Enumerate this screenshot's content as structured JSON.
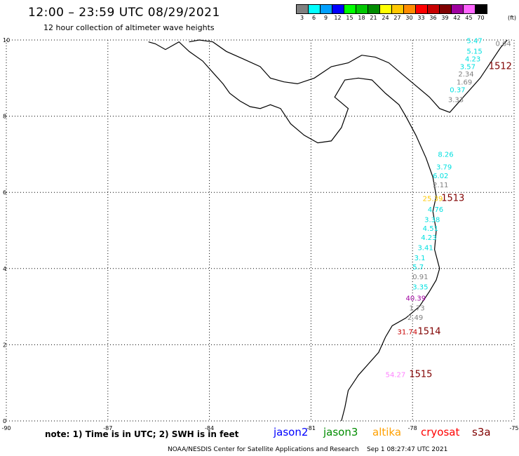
{
  "header": {
    "title": "12:00 – 23:59 UTC 08/29/2021",
    "subtitle": "12 hour collection of altimeter wave heights"
  },
  "legend": {
    "unit": "(ft)",
    "bins": [
      {
        "label": "3",
        "color": "#808080"
      },
      {
        "label": "6",
        "color": "#00ffff"
      },
      {
        "label": "9",
        "color": "#00a0ff"
      },
      {
        "label": "12",
        "color": "#0000ff"
      },
      {
        "label": "15",
        "color": "#00ff00"
      },
      {
        "label": "18",
        "color": "#00c800"
      },
      {
        "label": "21",
        "color": "#008c00"
      },
      {
        "label": "24",
        "color": "#ffff00"
      },
      {
        "label": "27",
        "color": "#ffc800"
      },
      {
        "label": "30",
        "color": "#ff8c00"
      },
      {
        "label": "33",
        "color": "#ff0000"
      },
      {
        "label": "36",
        "color": "#c80000"
      },
      {
        "label": "39",
        "color": "#800000"
      },
      {
        "label": "42",
        "color": "#a000a0"
      },
      {
        "label": "45",
        "color": "#ff64ff"
      },
      {
        "label": "70",
        "color": "#000000"
      }
    ]
  },
  "map": {
    "lon_ticks": [
      "-90",
      "-87",
      "-84",
      "-81",
      "-78",
      "-75"
    ],
    "lat_ticks": [
      "0",
      "2",
      "4",
      "6",
      "8",
      "10"
    ],
    "lon_range": [
      -90,
      -75
    ],
    "lat_range": [
      0,
      10
    ],
    "grid": "dotted",
    "coastline": [
      [
        -85.8,
        9.95
      ],
      [
        -85.6,
        9.9
      ],
      [
        -85.3,
        9.75
      ],
      [
        -84.9,
        9.95
      ],
      [
        -84.6,
        9.7
      ],
      [
        -84.2,
        9.45
      ],
      [
        -83.9,
        9.15
      ],
      [
        -83.6,
        8.85
      ],
      [
        -83.4,
        8.6
      ],
      [
        -83.1,
        8.4
      ],
      [
        -82.8,
        8.25
      ],
      [
        -82.5,
        8.2
      ],
      [
        -82.2,
        8.3
      ],
      [
        -81.9,
        8.2
      ],
      [
        -81.6,
        7.8
      ],
      [
        -81.2,
        7.5
      ],
      [
        -80.8,
        7.3
      ],
      [
        -80.4,
        7.35
      ],
      [
        -80.1,
        7.7
      ],
      [
        -79.9,
        8.2
      ],
      [
        -80.3,
        8.5
      ],
      [
        -80.0,
        8.95
      ],
      [
        -79.6,
        9.0
      ],
      [
        -79.2,
        8.95
      ],
      [
        -78.8,
        8.6
      ],
      [
        -78.4,
        8.3
      ],
      [
        -78.2,
        8.0
      ],
      [
        -77.9,
        7.5
      ],
      [
        -77.6,
        6.9
      ],
      [
        -77.4,
        6.4
      ],
      [
        -77.3,
        5.9
      ],
      [
        -77.4,
        5.5
      ],
      [
        -77.3,
        5.0
      ],
      [
        -77.35,
        4.5
      ],
      [
        -77.2,
        4.0
      ],
      [
        -77.3,
        3.7
      ],
      [
        -77.5,
        3.4
      ],
      [
        -77.8,
        3.0
      ],
      [
        -78.2,
        2.7
      ],
      [
        -78.6,
        2.5
      ],
      [
        -78.8,
        2.2
      ],
      [
        -79.0,
        1.8
      ],
      [
        -79.3,
        1.5
      ],
      [
        -79.6,
        1.2
      ],
      [
        -79.9,
        0.8
      ],
      [
        -80.0,
        0.35
      ],
      [
        -80.1,
        0.0
      ]
    ],
    "north_coast": [
      [
        -84.6,
        9.95
      ],
      [
        -84.3,
        10.0
      ],
      [
        -83.9,
        9.95
      ],
      [
        -83.5,
        9.7
      ],
      [
        -83.0,
        9.5
      ],
      [
        -82.5,
        9.3
      ],
      [
        -82.2,
        9.0
      ],
      [
        -81.8,
        8.9
      ],
      [
        -81.4,
        8.85
      ],
      [
        -80.9,
        9.0
      ],
      [
        -80.4,
        9.3
      ],
      [
        -79.9,
        9.4
      ],
      [
        -79.5,
        9.6
      ],
      [
        -79.1,
        9.55
      ],
      [
        -78.7,
        9.4
      ],
      [
        -78.3,
        9.1
      ],
      [
        -77.9,
        8.8
      ],
      [
        -77.5,
        8.5
      ],
      [
        -77.2,
        8.2
      ],
      [
        -76.9,
        8.1
      ],
      [
        -76.7,
        8.3
      ],
      [
        -76.4,
        8.6
      ],
      [
        -76.0,
        9.0
      ],
      [
        -75.7,
        9.4
      ],
      [
        -75.4,
        9.8
      ],
      [
        -75.2,
        10.0
      ]
    ],
    "passes": [
      {
        "id": "1512",
        "color": "#800000",
        "label_lon": -75.75,
        "label_lat": 9.24
      },
      {
        "id": "1513",
        "color": "#800000",
        "label_lon": -77.15,
        "label_lat": 5.77
      },
      {
        "id": "1514",
        "color": "#800000",
        "label_lon": -77.85,
        "label_lat": 2.27
      },
      {
        "id": "1515",
        "color": "#800000",
        "label_lon": -78.1,
        "label_lat": 1.15
      }
    ],
    "wave_heights": [
      {
        "text": "0.64",
        "color": "#808080",
        "lon": -75.55,
        "lat": 9.84
      },
      {
        "text": "5.47",
        "color": "#00e0e0",
        "lon": -76.4,
        "lat": 9.92
      },
      {
        "text": "5.15",
        "color": "#00e0e0",
        "lon": -76.4,
        "lat": 9.64
      },
      {
        "text": "4.23",
        "color": "#00e0e0",
        "lon": -76.45,
        "lat": 9.44
      },
      {
        "text": "3.57",
        "color": "#00e0e0",
        "lon": -76.6,
        "lat": 9.24
      },
      {
        "text": "2.34",
        "color": "#808080",
        "lon": -76.65,
        "lat": 9.04
      },
      {
        "text": "1.69",
        "color": "#808080",
        "lon": -76.7,
        "lat": 8.83
      },
      {
        "text": "0.37",
        "color": "#00e0e0",
        "lon": -76.9,
        "lat": 8.63
      },
      {
        "text": "3.33",
        "color": "#808080",
        "lon": -76.95,
        "lat": 8.37
      },
      {
        "text": "8.26",
        "color": "#00e0e0",
        "lon": -77.25,
        "lat": 6.93
      },
      {
        "text": "3.79",
        "color": "#00e0e0",
        "lon": -77.3,
        "lat": 6.6
      },
      {
        "text": "6.02",
        "color": "#00e0e0",
        "lon": -77.4,
        "lat": 6.37
      },
      {
        "text": "2.11",
        "color": "#808080",
        "lon": -77.4,
        "lat": 6.13
      },
      {
        "text": "25.39",
        "color": "#ffc800",
        "lon": -77.7,
        "lat": 5.77
      },
      {
        "text": "4.76",
        "color": "#00e0e0",
        "lon": -77.55,
        "lat": 5.49
      },
      {
        "text": "3.38",
        "color": "#00e0e0",
        "lon": -77.65,
        "lat": 5.22
      },
      {
        "text": "4.51",
        "color": "#00e0e0",
        "lon": -77.7,
        "lat": 4.99
      },
      {
        "text": "4.23",
        "color": "#00e0e0",
        "lon": -77.75,
        "lat": 4.75
      },
      {
        "text": "3.41",
        "color": "#00e0e0",
        "lon": -77.85,
        "lat": 4.48
      },
      {
        "text": "3.1",
        "color": "#00e0e0",
        "lon": -77.95,
        "lat": 4.22
      },
      {
        "text": "5.7",
        "color": "#00e0e0",
        "lon": -78.0,
        "lat": 3.98
      },
      {
        "text": "0.91",
        "color": "#808080",
        "lon": -78.0,
        "lat": 3.72
      },
      {
        "text": "3.35",
        "color": "#00e0e0",
        "lon": -78.0,
        "lat": 3.45
      },
      {
        "text": "40.39",
        "color": "#a000a0",
        "lon": -78.2,
        "lat": 3.16
      },
      {
        "text": "1.73",
        "color": "#808080",
        "lon": -78.1,
        "lat": 2.9
      },
      {
        "text": "2.49",
        "color": "#808080",
        "lon": -78.15,
        "lat": 2.65
      },
      {
        "text": "31.74",
        "color": "#c80000",
        "lon": -78.45,
        "lat": 2.27
      },
      {
        "text": "54.27",
        "color": "#ff80ff",
        "lon": -78.8,
        "lat": 1.15
      }
    ]
  },
  "footer": {
    "note": "note:  1) Time is in UTC;  2) SWH is in feet",
    "satellites": [
      {
        "name": "jason2",
        "color": "#0000ff"
      },
      {
        "name": "jason3",
        "color": "#008c00"
      },
      {
        "name": "altika",
        "color": "#ffa000"
      },
      {
        "name": "cryosat",
        "color": "#ff0000"
      },
      {
        "name": "s3a",
        "color": "#800000"
      }
    ],
    "credit": "NOAA/NESDIS Center for Satellite Applications and Research",
    "timestamp": "Sep  1 08:27:47 UTC 2021"
  }
}
